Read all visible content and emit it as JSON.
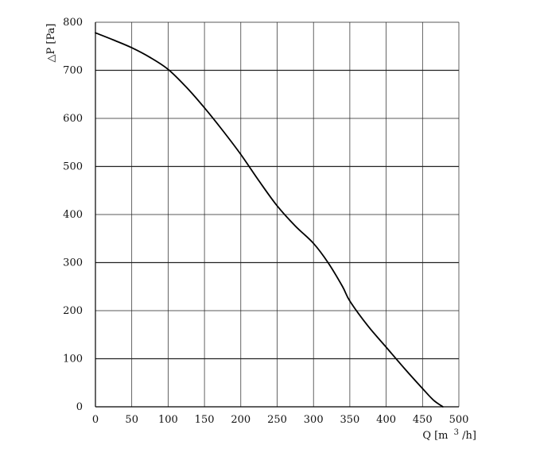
{
  "chart_data": {
    "type": "line",
    "title": "",
    "xlabel": "Q [m³/h]",
    "xlabel_parts": {
      "main": "Q [m",
      "sup": "3",
      "tail": "/h]"
    },
    "ylabel": "△P [Pa]",
    "xlim": [
      0,
      500
    ],
    "ylim": [
      0,
      800
    ],
    "x_ticks": [
      0,
      50,
      100,
      150,
      200,
      250,
      300,
      350,
      400,
      450,
      500
    ],
    "y_ticks": [
      0,
      100,
      200,
      300,
      400,
      500,
      600,
      700,
      800
    ],
    "x_tick_labels": [
      "0",
      "50",
      "100",
      "150",
      "200",
      "250",
      "300",
      "350",
      "400",
      "450",
      "500"
    ],
    "y_tick_labels": [
      "0",
      "100",
      "200",
      "300",
      "400",
      "500",
      "600",
      "700",
      "800"
    ],
    "grid": true,
    "series": [
      {
        "x": [
          0,
          25,
          50,
          75,
          100,
          125,
          150,
          175,
          200,
          225,
          250,
          275,
          300,
          320,
          340,
          350,
          375,
          400,
          425,
          450,
          465,
          478
        ],
        "values": [
          778,
          763,
          747,
          727,
          702,
          665,
          622,
          575,
          525,
          470,
          418,
          376,
          340,
          300,
          250,
          220,
          168,
          124,
          80,
          38,
          14,
          0
        ]
      }
    ],
    "colors": {
      "line": "#000000",
      "grid": "#222222",
      "background": "#ffffff"
    }
  }
}
